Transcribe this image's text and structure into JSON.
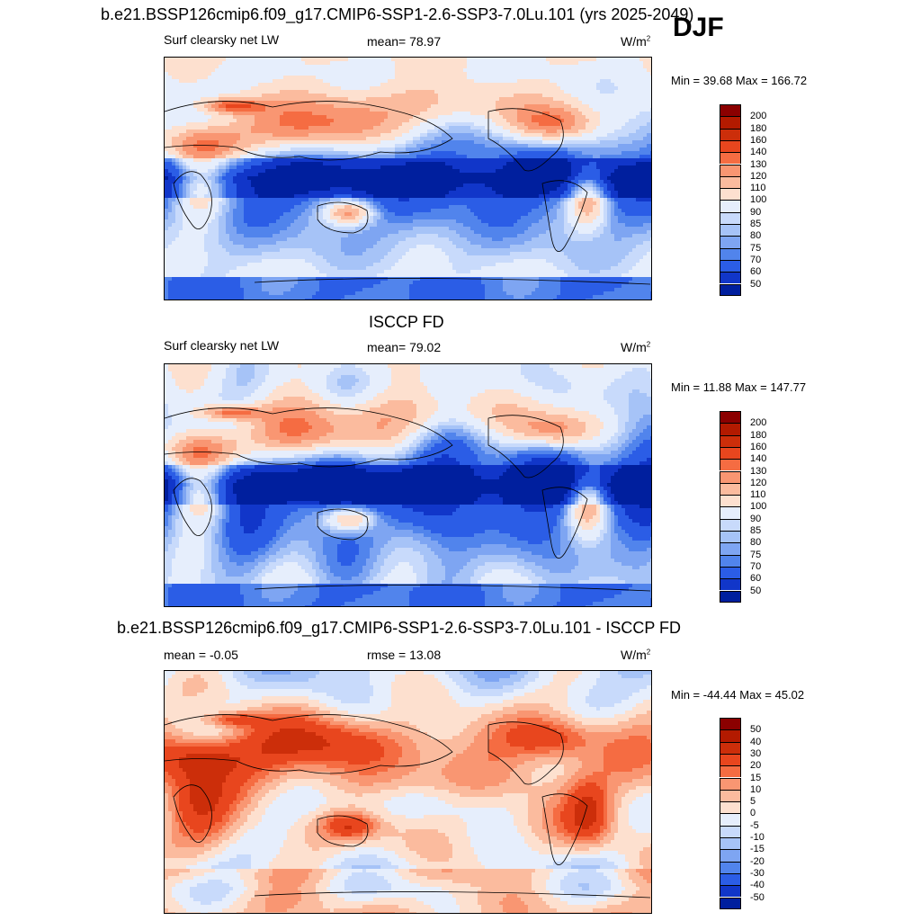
{
  "season": "DJF",
  "panels": [
    {
      "title": "b.e21.BSSP126cmip6.f09_g17.CMIP6-SSP1-2.6-SSP3-7.0Lu.101 (yrs 2025-2049)",
      "left_label": "Surf clearsky net LW",
      "center_label": "mean=  78.97",
      "unit_base": "W/m",
      "unit_exp": "2",
      "minmax": "Min =  39.68 Max = 166.72",
      "colorbar": "abs",
      "field": "model"
    },
    {
      "title": "ISCCP FD",
      "left_label": "Surf clearsky net LW",
      "center_label": "mean=  79.02",
      "unit_base": "W/m",
      "unit_exp": "2",
      "minmax": "Min =  11.88 Max = 147.77",
      "colorbar": "abs",
      "field": "obs"
    },
    {
      "title": "b.e21.BSSP126cmip6.f09_g17.CMIP6-SSP1-2.6-SSP3-7.0Lu.101 - ISCCP FD",
      "left_label": "mean =  -0.05",
      "center_label": "rmse =  13.08",
      "unit_base": "W/m",
      "unit_exp": "2",
      "minmax": "Min = -44.44 Max =  45.02",
      "colorbar": "diff",
      "field": "diff"
    }
  ],
  "colorbars": {
    "abs": {
      "labels": [
        "200",
        "180",
        "160",
        "140",
        "130",
        "120",
        "110",
        "100",
        "90",
        "85",
        "80",
        "75",
        "70",
        "60",
        "50"
      ],
      "colors": [
        "#8b0000",
        "#b31a00",
        "#cc2e0a",
        "#e8461e",
        "#f56c42",
        "#f99672",
        "#fbbb9e",
        "#fde0cf",
        "#e6eefc",
        "#c8dafb",
        "#a6c3f7",
        "#7ea5f2",
        "#5184ec",
        "#2b5de6",
        "#1136c9",
        "#001f9e"
      ]
    },
    "diff": {
      "labels": [
        "50",
        "40",
        "30",
        "20",
        "15",
        "10",
        "5",
        "0",
        "-5",
        "-10",
        "-15",
        "-20",
        "-30",
        "-40",
        "-50"
      ],
      "colors": [
        "#8b0000",
        "#b31a00",
        "#cc2e0a",
        "#e8461e",
        "#f56c42",
        "#f99672",
        "#fbbb9e",
        "#fde0cf",
        "#e6eefc",
        "#c8dafb",
        "#a6c3f7",
        "#7ea5f2",
        "#5184ec",
        "#2b5de6",
        "#1136c9",
        "#001f9e"
      ]
    }
  },
  "chart_data": [
    {
      "type": "heatmap",
      "title": "b.e21.BSSP126cmip6.f09_g17.CMIP6-SSP1-2.6-SSP3-7.0Lu.101 (yrs 2025-2049)",
      "variable": "Surf clearsky net LW",
      "mean": 78.97,
      "min": 39.68,
      "max": 166.72,
      "contour_levels": [
        50,
        60,
        70,
        75,
        80,
        85,
        90,
        100,
        110,
        120,
        130,
        140,
        160,
        180,
        200
      ],
      "grid": "global lat-lon"
    },
    {
      "type": "heatmap",
      "title": "ISCCP FD",
      "variable": "Surf clearsky net LW",
      "mean": 79.02,
      "min": 11.88,
      "max": 147.77,
      "contour_levels": [
        50,
        60,
        70,
        75,
        80,
        85,
        90,
        100,
        110,
        120,
        130,
        140,
        160,
        180,
        200
      ],
      "grid": "global lat-lon"
    },
    {
      "type": "heatmap",
      "title": "b.e21.BSSP126cmip6.f09_g17.CMIP6-SSP1-2.6-SSP3-7.0Lu.101 - ISCCP FD",
      "mean": -0.05,
      "rmse": 13.08,
      "min": -44.44,
      "max": 45.02,
      "contour_levels": [
        -50,
        -40,
        -30,
        -20,
        -15,
        -10,
        -5,
        0,
        5,
        10,
        15,
        20,
        30,
        40,
        50
      ],
      "grid": "global lat-lon"
    }
  ]
}
